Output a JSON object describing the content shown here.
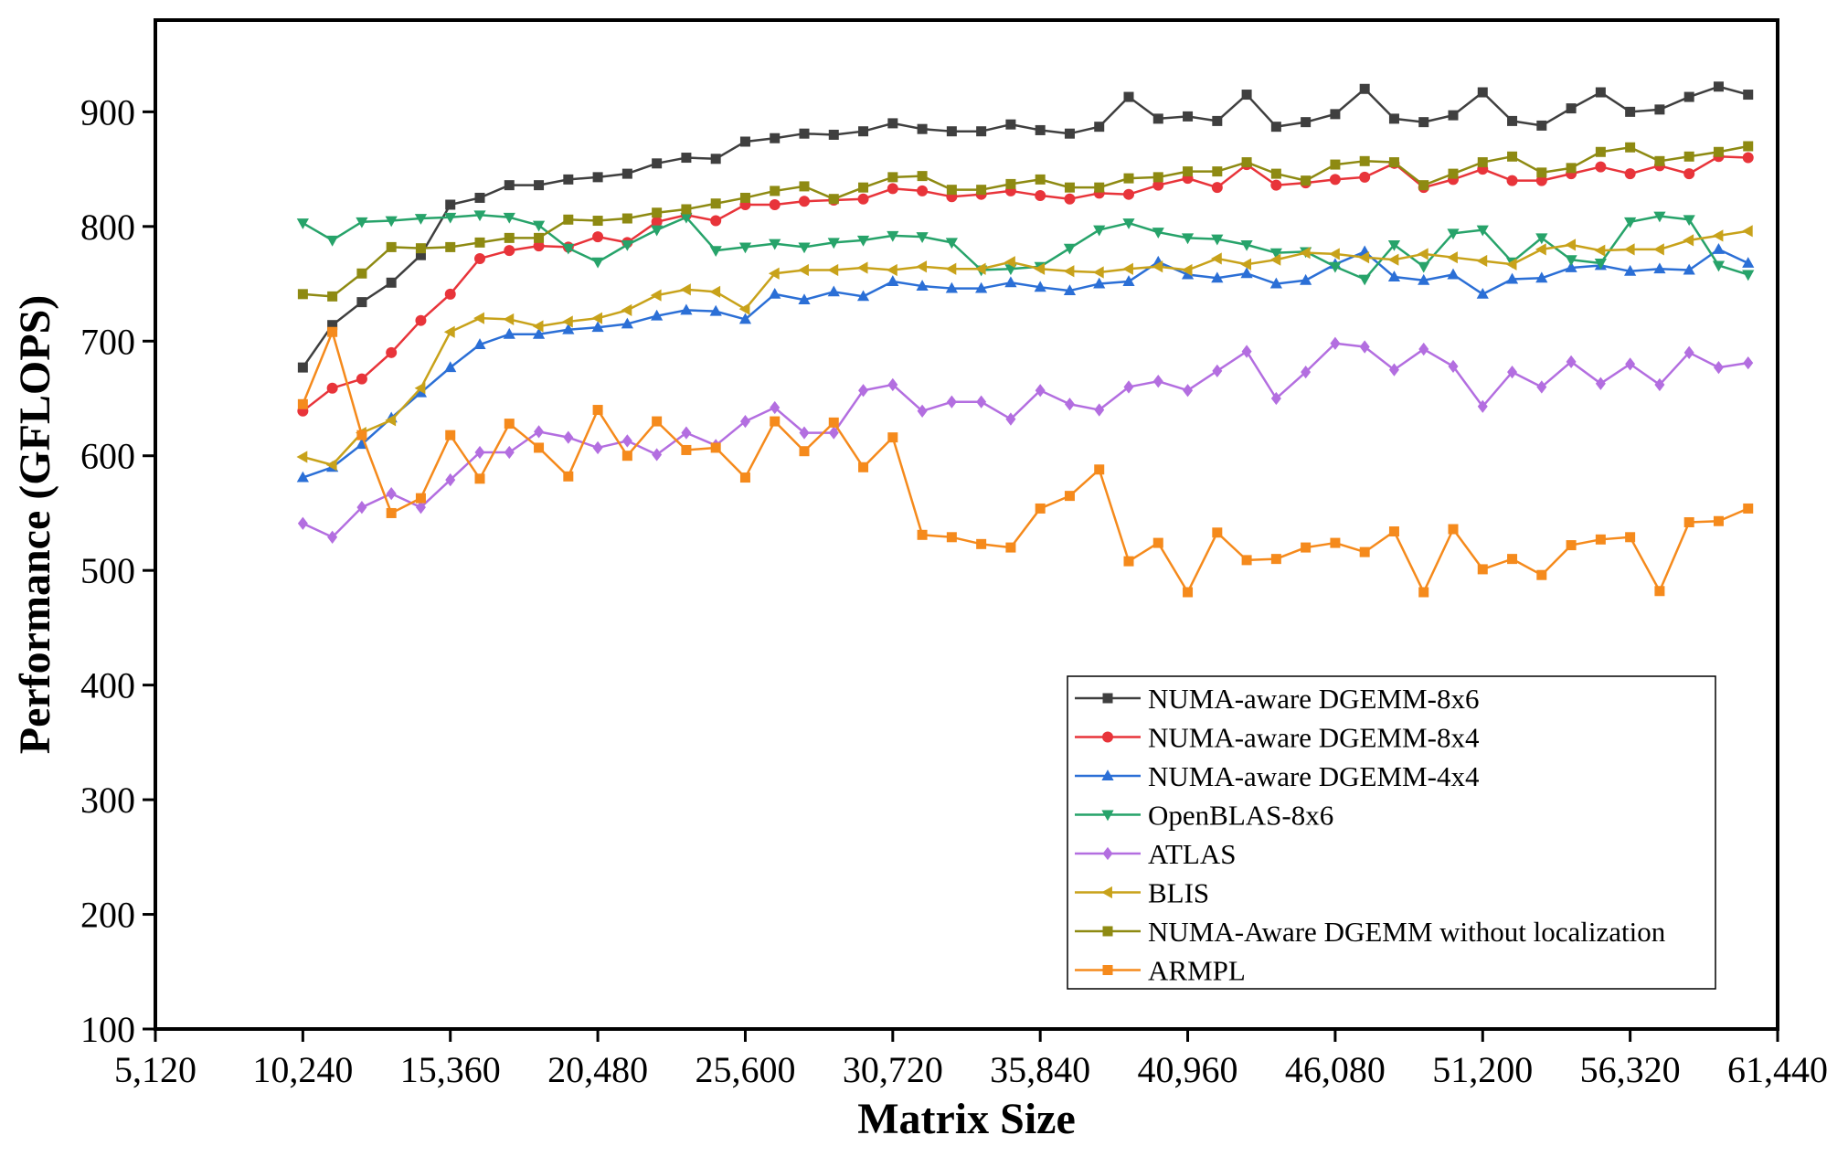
{
  "chart_data": {
    "type": "line",
    "xlabel": "Matrix Size",
    "ylabel": "Performance (GFLOPS)",
    "xlim": [
      5120,
      61440
    ],
    "ylim": [
      100,
      980
    ],
    "xticks": [
      5120,
      10240,
      15360,
      20480,
      25600,
      30720,
      35840,
      40960,
      46080,
      51200,
      56320,
      61440
    ],
    "xtick_labels": [
      "5,120",
      "10,240",
      "15,360",
      "20,480",
      "25,600",
      "30,720",
      "35,840",
      "40,960",
      "46,080",
      "51,200",
      "56,320",
      "61,440"
    ],
    "yticks": [
      100,
      200,
      300,
      400,
      500,
      600,
      700,
      800,
      900
    ],
    "ytick_labels": [
      "100",
      "200",
      "300",
      "400",
      "500",
      "600",
      "700",
      "800",
      "900"
    ],
    "grid": false,
    "legend_position": "bottom-right",
    "x": [
      10240,
      11264,
      12288,
      13312,
      14336,
      15360,
      16384,
      17408,
      18432,
      19456,
      20480,
      21504,
      22528,
      23552,
      24576,
      25600,
      26624,
      27648,
      28672,
      29696,
      30720,
      31744,
      32768,
      33792,
      34816,
      35840,
      36864,
      37888,
      38912,
      39936,
      40960,
      41984,
      43008,
      44032,
      45056,
      46080,
      47104,
      48128,
      49152,
      50176,
      51200,
      52224,
      53248,
      54272,
      55296,
      56320,
      57344,
      58368,
      59392,
      60416
    ],
    "series": [
      {
        "name": "NUMA-aware DGEMM-8x6",
        "color": "#3f3f3f",
        "marker": "square",
        "values": [
          677,
          714,
          734,
          751,
          775,
          819,
          825,
          836,
          836,
          841,
          843,
          846,
          855,
          860,
          859,
          874,
          877,
          881,
          880,
          883,
          890,
          885,
          883,
          883,
          889,
          884,
          881,
          887,
          913,
          894,
          896,
          892,
          915,
          887,
          891,
          898,
          920,
          894,
          891,
          897,
          917,
          892,
          888,
          903,
          917,
          900,
          902,
          913,
          922,
          915
        ]
      },
      {
        "name": "NUMA-aware DGEMM-8x4",
        "color": "#e8343a",
        "marker": "circle",
        "values": [
          639,
          659,
          667,
          690,
          718,
          741,
          772,
          779,
          783,
          782,
          791,
          786,
          804,
          810,
          805,
          819,
          819,
          822,
          823,
          824,
          833,
          831,
          826,
          828,
          831,
          827,
          824,
          829,
          828,
          836,
          842,
          834,
          854,
          836,
          838,
          841,
          843,
          855,
          834,
          841,
          850,
          840,
          840,
          846,
          852,
          846,
          853,
          846,
          861,
          860
        ]
      },
      {
        "name": "NUMA-aware DGEMM-4x4",
        "color": "#2b6fd6",
        "marker": "triangle-up",
        "values": [
          581,
          590,
          610,
          633,
          655,
          677,
          697,
          706,
          706,
          710,
          712,
          715,
          722,
          727,
          726,
          719,
          741,
          736,
          743,
          739,
          752,
          748,
          746,
          746,
          751,
          747,
          744,
          750,
          752,
          769,
          758,
          755,
          759,
          750,
          753,
          767,
          778,
          756,
          753,
          758,
          741,
          754,
          755,
          764,
          766,
          761,
          763,
          762,
          780,
          768
        ]
      },
      {
        "name": "OpenBLAS-8x6",
        "color": "#27a36a",
        "marker": "triangle-down",
        "values": [
          803,
          788,
          804,
          805,
          807,
          808,
          810,
          808,
          801,
          781,
          769,
          784,
          797,
          808,
          779,
          782,
          785,
          782,
          786,
          788,
          792,
          791,
          786,
          762,
          763,
          765,
          781,
          797,
          803,
          795,
          790,
          789,
          784,
          777,
          778,
          765,
          754,
          784,
          765,
          794,
          797,
          769,
          790,
          771,
          768,
          804,
          809,
          806,
          766,
          758
        ]
      },
      {
        "name": "ATLAS",
        "color": "#b36ee0",
        "marker": "diamond",
        "values": [
          541,
          529,
          555,
          567,
          555,
          579,
          603,
          603,
          621,
          616,
          607,
          613,
          601,
          620,
          609,
          630,
          642,
          620,
          620,
          657,
          662,
          639,
          647,
          647,
          632,
          657,
          645,
          640,
          660,
          665,
          657,
          674,
          691,
          650,
          673,
          698,
          695,
          675,
          693,
          678,
          643,
          673,
          660,
          682,
          663,
          680,
          662,
          690,
          677,
          681
        ]
      },
      {
        "name": "BLIS",
        "color": "#c8a21a",
        "marker": "triangle-left",
        "values": [
          599,
          592,
          620,
          631,
          659,
          708,
          720,
          719,
          713,
          717,
          720,
          727,
          740,
          745,
          743,
          728,
          759,
          762,
          762,
          764,
          762,
          765,
          763,
          763,
          769,
          763,
          761,
          760,
          763,
          765,
          762,
          772,
          767,
          771,
          777,
          776,
          773,
          771,
          776,
          773,
          770,
          767,
          780,
          784,
          779,
          780,
          780,
          788,
          792,
          796
        ]
      },
      {
        "name": "NUMA-Aware DGEMM without localization",
        "color": "#8e8a12",
        "marker": "square",
        "values": [
          741,
          739,
          759,
          782,
          781,
          782,
          786,
          790,
          790,
          806,
          805,
          807,
          812,
          815,
          820,
          825,
          831,
          835,
          824,
          834,
          843,
          844,
          832,
          832,
          837,
          841,
          834,
          834,
          842,
          843,
          848,
          848,
          856,
          846,
          840,
          854,
          857,
          856,
          836,
          846,
          856,
          861,
          847,
          851,
          865,
          869,
          857,
          861,
          865,
          870
        ]
      },
      {
        "name": "ARMPL",
        "color": "#f58a1c",
        "marker": "square",
        "values": [
          645,
          708,
          618,
          550,
          563,
          618,
          580,
          628,
          607,
          582,
          640,
          600,
          630,
          605,
          607,
          581,
          630,
          604,
          629,
          590,
          616,
          531,
          529,
          523,
          520,
          554,
          565,
          588,
          508,
          524,
          481,
          533,
          509,
          510,
          520,
          524,
          516,
          534,
          481,
          536,
          501,
          510,
          496,
          522,
          527,
          529,
          482,
          542,
          543,
          554
        ]
      }
    ]
  }
}
